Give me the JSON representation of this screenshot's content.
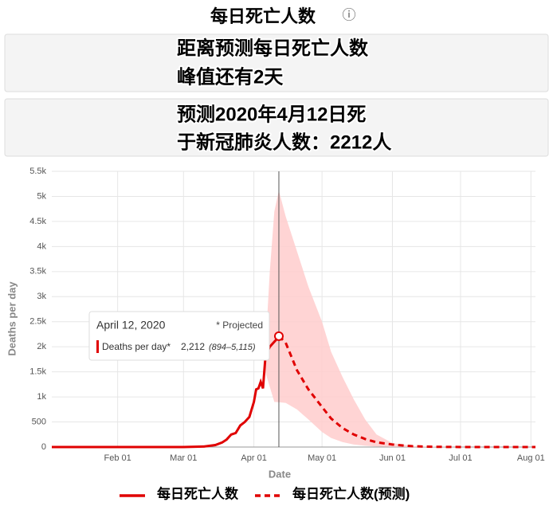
{
  "header": {
    "title": "每日死亡人数",
    "info_icon": "ⓘ"
  },
  "boxes": [
    {
      "lines": [
        "距离预测每日死亡人数",
        "峰值还有2天"
      ]
    },
    {
      "lines": [
        "预测2020年4月12日死",
        "于新冠肺炎人数：2212人"
      ]
    }
  ],
  "chart_data": {
    "type": "line",
    "xlabel": "Date",
    "ylabel": "Deaths per day",
    "xlim": [
      "2020-01-03",
      "2020-08-03"
    ],
    "xticks": [
      {
        "value": "2020-02-01",
        "label": "Feb 01"
      },
      {
        "value": "2020-03-01",
        "label": "Mar 01"
      },
      {
        "value": "2020-04-01",
        "label": "Apr 01"
      },
      {
        "value": "2020-05-01",
        "label": "May 01"
      },
      {
        "value": "2020-06-01",
        "label": "Jun 01"
      },
      {
        "value": "2020-07-01",
        "label": "Jul 01"
      },
      {
        "value": "2020-08-01",
        "label": "Aug 01"
      }
    ],
    "ylim": [
      0,
      5500
    ],
    "yticks": [
      0,
      500,
      {
        "value": 1000,
        "label": "1k"
      },
      {
        "value": 1500,
        "label": "1.5k"
      },
      {
        "value": 2000,
        "label": "2k"
      },
      {
        "value": 2500,
        "label": "2.5k"
      },
      {
        "value": 3000,
        "label": "3k"
      },
      {
        "value": 3500,
        "label": "3.5k"
      },
      {
        "value": 4000,
        "label": "4k"
      },
      {
        "value": 4500,
        "label": "4.5k"
      },
      {
        "value": 5000,
        "label": "5k"
      },
      {
        "value": 5500,
        "label": "5.5k"
      }
    ],
    "grid": true,
    "series": [
      {
        "name": "每日死亡人数",
        "color": "#e00000",
        "dash": false,
        "x": [
          "2020-01-03",
          "2020-02-01",
          "2020-03-01",
          "2020-03-10",
          "2020-03-15",
          "2020-03-18",
          "2020-03-20",
          "2020-03-22",
          "2020-03-24",
          "2020-03-26",
          "2020-03-28",
          "2020-03-30",
          "2020-04-01",
          "2020-04-02",
          "2020-04-03",
          "2020-04-04",
          "2020-04-05",
          "2020-04-06",
          "2020-04-07",
          "2020-04-08",
          "2020-04-09",
          "2020-04-10",
          "2020-04-11"
        ],
        "values": [
          0,
          0,
          0,
          10,
          40,
          90,
          150,
          250,
          280,
          430,
          500,
          600,
          900,
          1150,
          1170,
          1300,
          1170,
          1750,
          1900,
          2000,
          2050,
          2100,
          2150
        ]
      },
      {
        "name": "每日死亡人数(预测)",
        "color": "#e00000",
        "dash": true,
        "x": [
          "2020-04-12",
          "2020-04-15",
          "2020-04-20",
          "2020-04-25",
          "2020-05-01",
          "2020-05-05",
          "2020-05-10",
          "2020-05-15",
          "2020-05-20",
          "2020-05-25",
          "2020-06-01",
          "2020-06-10",
          "2020-06-20",
          "2020-07-01",
          "2020-08-03"
        ],
        "values": [
          2212,
          2080,
          1530,
          1150,
          800,
          570,
          380,
          250,
          160,
          95,
          50,
          15,
          5,
          0,
          0
        ]
      }
    ],
    "band": {
      "color": "#ffcccc",
      "x": [
        "2020-04-06",
        "2020-04-08",
        "2020-04-10",
        "2020-04-12",
        "2020-04-15",
        "2020-04-20",
        "2020-04-25",
        "2020-05-01",
        "2020-05-05",
        "2020-05-10",
        "2020-05-15",
        "2020-05-20",
        "2020-05-25",
        "2020-06-01",
        "2020-06-10",
        "2020-06-20",
        "2020-07-01",
        "2020-08-03"
      ],
      "upper": [
        1900,
        3500,
        4700,
        5115,
        4600,
        3900,
        3200,
        2500,
        1900,
        1400,
        950,
        550,
        250,
        80,
        20,
        5,
        0,
        0
      ],
      "lower": [
        1500,
        1200,
        900,
        894,
        880,
        750,
        550,
        300,
        180,
        100,
        50,
        25,
        10,
        3,
        0,
        0,
        0,
        0
      ]
    },
    "tooltip": {
      "date": "April 12, 2020",
      "note": "* Projected",
      "series_label": "Deaths per day*",
      "value_label": "2,212",
      "range_label": "(894–5,115)"
    }
  }
}
